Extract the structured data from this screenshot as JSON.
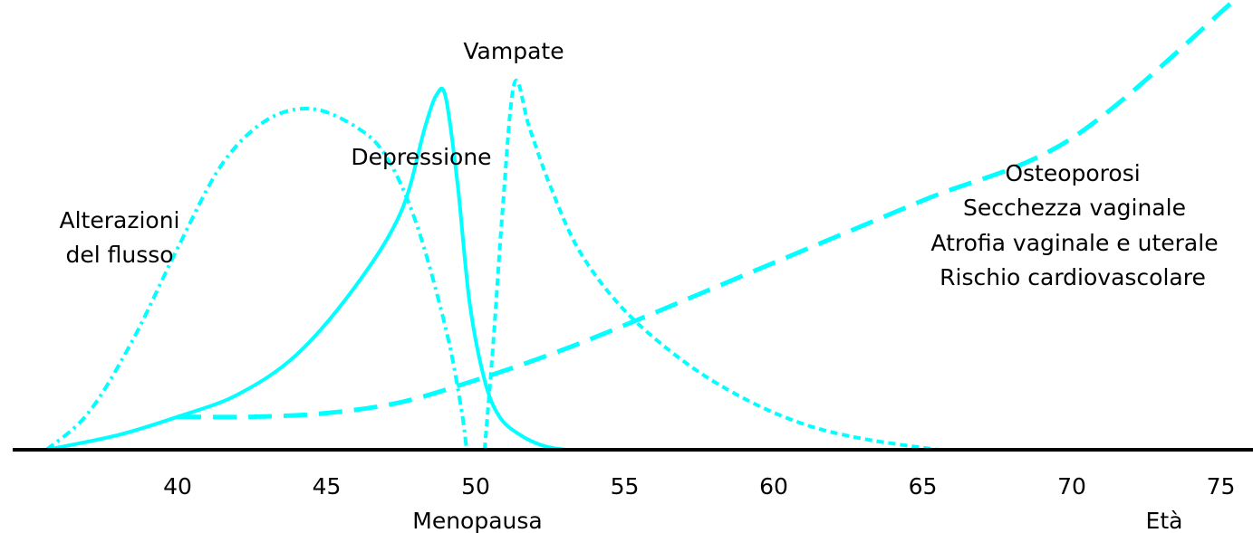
{
  "chart_data": {
    "type": "line",
    "title": "",
    "xlabel": "Età",
    "ylabel": "",
    "xlim": [
      35.5,
      75.5
    ],
    "ylim": [
      0,
      1
    ],
    "grid": false,
    "x_ticks": [
      40,
      45,
      50,
      55,
      60,
      65,
      70,
      75
    ],
    "x_tick_labels": [
      "40",
      "45",
      "50",
      "55",
      "60",
      "65",
      "70",
      "75"
    ],
    "annotations": {
      "menopause": "Menopausa",
      "age": "Età"
    },
    "colors": {
      "curves": "#00ffff",
      "axis": "#000000",
      "text": "#000000"
    },
    "series": [
      {
        "label_lines": [
          "Alterazioni",
          "del flusso"
        ],
        "style": "dash-dot",
        "x": [
          35.6,
          37,
          38.5,
          40,
          41.5,
          43,
          44.5,
          46,
          47,
          48,
          49,
          49.5,
          49.7
        ],
        "y": [
          0,
          0.1,
          0.3,
          0.55,
          0.78,
          0.9,
          0.93,
          0.88,
          0.8,
          0.62,
          0.33,
          0.12,
          0
        ]
      },
      {
        "label_lines": [
          "Depressione"
        ],
        "style": "solid",
        "x": [
          35.6,
          38,
          40,
          42,
          44,
          46,
          47.5,
          48.3,
          48.7,
          49,
          49.4,
          49.8,
          50.3,
          50.8,
          51.5,
          52.3,
          53
        ],
        "y": [
          0,
          0.04,
          0.09,
          0.15,
          0.26,
          0.45,
          0.65,
          0.88,
          0.97,
          0.96,
          0.72,
          0.4,
          0.19,
          0.09,
          0.04,
          0.01,
          0
        ]
      },
      {
        "label_lines": [
          "Vampate"
        ],
        "style": "dashed",
        "x": [
          50.3,
          50.6,
          50.9,
          51.3,
          51.8,
          52.5,
          53.5,
          55,
          57,
          59,
          61,
          63,
          65.5
        ],
        "y": [
          0,
          0.3,
          0.65,
          1.0,
          0.88,
          0.72,
          0.54,
          0.38,
          0.24,
          0.14,
          0.07,
          0.03,
          0
        ]
      },
      {
        "label_lines": [
          "Osteoporosi",
          "Secchezza vaginale",
          "Atrofia vaginale e uterale",
          "Rischio cardiovascolare"
        ],
        "style": "long-dash",
        "x": [
          40,
          42.5,
          45,
          47.5,
          50,
          52.5,
          55,
          60,
          65,
          70,
          75.5
        ],
        "y": [
          0.09,
          0.09,
          0.1,
          0.13,
          0.19,
          0.26,
          0.34,
          0.51,
          0.68,
          0.85,
          1.23
        ]
      }
    ]
  }
}
